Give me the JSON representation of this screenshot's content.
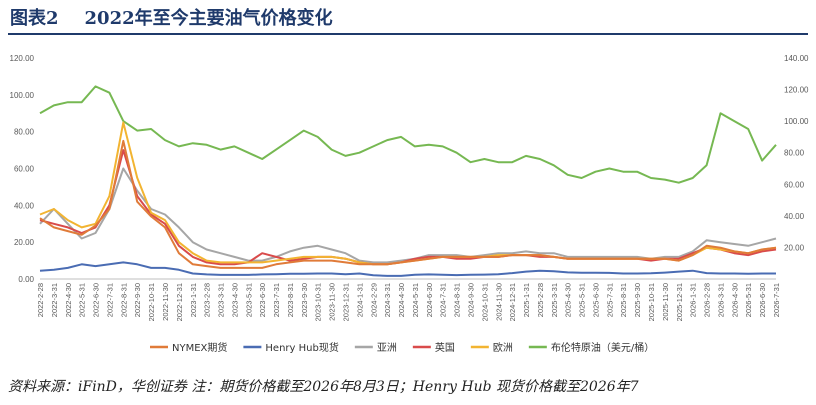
{
  "header": {
    "figure_label": "图表2",
    "title": "2022年至今主要油气价格变化"
  },
  "source_text": "资料来源：iFinD，华创证券 注：期货价格截至2026年8月3日；Henry Hub 现货价格截至2026年7",
  "chart_data": {
    "type": "line",
    "x_ticks": [
      "2022-2-28",
      "2022-3-31",
      "2022-4-30",
      "2022-5-31",
      "2022-6-30",
      "2022-7-31",
      "2022-8-31",
      "2022-9-30",
      "2022-10-31",
      "2022-11-30",
      "2022-12-31",
      "2023-1-31",
      "2023-2-28",
      "2023-3-31",
      "2023-4-30",
      "2023-5-31",
      "2023-6-30",
      "2023-7-31",
      "2023-8-31",
      "2023-9-30",
      "2023-10-31",
      "2023-11-30",
      "2023-12-31",
      "2024-1-31",
      "2024-2-29",
      "2024-3-31",
      "2024-4-30",
      "2024-5-31",
      "2024-6-30",
      "2024-7-31",
      "2024-8-31",
      "2024-9-30",
      "2024-10-31",
      "2024-11-30",
      "2024-12-31",
      "2025-1-31",
      "2025-2-28",
      "2025-3-31",
      "2025-4-30",
      "2025-5-31",
      "2025-6-30",
      "2025-7-31",
      "2025-8-31",
      "2025-9-30",
      "2025-10-31",
      "2025-11-30",
      "2025-12-31",
      "2026-1-31",
      "2026-2-28",
      "2026-3-31",
      "2026-4-30",
      "2026-5-31",
      "2026-6-30",
      "2026-7-31"
    ],
    "y_left": {
      "range": [
        0,
        120
      ],
      "ticks": [
        "0.00",
        "20.00",
        "40.00",
        "60.00",
        "80.00",
        "100.00",
        "120.00"
      ]
    },
    "y_right": {
      "range": [
        0,
        140
      ],
      "ticks": [
        "20.00",
        "40.00",
        "60.00",
        "80.00",
        "100.00",
        "120.00",
        "140.00"
      ]
    },
    "grid": false,
    "legend_position": "bottom",
    "series": [
      {
        "name": "NYMEX期货",
        "color": "#e07b39",
        "axis": "left",
        "values": [
          33,
          28,
          26,
          24,
          29,
          38,
          75,
          42,
          34,
          28,
          14,
          8,
          7,
          6,
          6,
          6,
          6,
          8,
          9,
          10,
          10,
          10,
          9,
          8,
          8,
          8,
          9,
          10,
          11,
          12,
          12,
          12,
          12,
          12,
          13,
          13,
          13,
          12,
          11,
          11,
          11,
          11,
          11,
          11,
          11,
          11,
          10,
          13,
          18,
          17,
          15,
          14,
          16,
          17
        ]
      },
      {
        "name": "Henry Hub现货",
        "color": "#4a6cb3",
        "axis": "left",
        "values": [
          4.5,
          5,
          6,
          8,
          7,
          8,
          9,
          8,
          6,
          6,
          5,
          3,
          2.5,
          2.2,
          2.2,
          2.2,
          2.5,
          2.6,
          2.8,
          2.9,
          3,
          3,
          2.6,
          3,
          2,
          1.7,
          1.7,
          2.3,
          2.5,
          2.3,
          2.1,
          2.3,
          2.4,
          2.6,
          3.2,
          4,
          4.5,
          4.2,
          3.6,
          3.4,
          3.4,
          3.3,
          3,
          3,
          3.1,
          3.5,
          4,
          4.5,
          3.2,
          3,
          3,
          2.9,
          3,
          3
        ]
      },
      {
        "name": "亚洲",
        "color": "#a6a6a6",
        "axis": "left",
        "values": [
          30,
          38,
          30,
          22,
          25,
          38,
          60,
          48,
          38,
          35,
          28,
          20,
          16,
          14,
          12,
          10,
          10,
          12,
          15,
          17,
          18,
          16,
          14,
          10,
          9,
          9,
          10,
          11,
          13,
          13,
          13,
          12,
          13,
          14,
          14,
          15,
          14,
          14,
          12,
          12,
          12,
          12,
          12,
          12,
          11,
          12,
          12,
          15,
          21,
          20,
          19,
          18,
          20,
          22
        ]
      },
      {
        "name": "英国",
        "color": "#d94b4b",
        "axis": "left",
        "values": [
          32,
          30,
          28,
          25,
          28,
          40,
          70,
          45,
          35,
          30,
          18,
          12,
          9,
          8,
          8,
          9,
          14,
          12,
          10,
          11,
          12,
          12,
          11,
          9,
          8,
          8,
          9,
          11,
          12,
          12,
          11,
          11,
          12,
          12,
          13,
          13,
          12,
          12,
          11,
          11,
          11,
          11,
          11,
          11,
          10,
          11,
          11,
          14,
          17,
          16,
          14,
          13,
          15,
          16
        ]
      },
      {
        "name": "欧洲",
        "color": "#f2b431",
        "axis": "left",
        "values": [
          35,
          38,
          32,
          28,
          30,
          45,
          85,
          55,
          36,
          32,
          20,
          14,
          10,
          9,
          9,
          9,
          9,
          10,
          11,
          12,
          12,
          12,
          11,
          9,
          8,
          8,
          9,
          10,
          11,
          12,
          12,
          12,
          12,
          13,
          13,
          13,
          13,
          12,
          11,
          11,
          11,
          11,
          11,
          11,
          11,
          11,
          10,
          13,
          17,
          16,
          15,
          14,
          16,
          17
        ]
      },
      {
        "name": "布伦特原油（美元/桶）",
        "color": "#76b852",
        "axis": "right",
        "values": [
          105,
          110,
          112,
          112,
          122,
          118,
          100,
          94,
          95,
          88,
          84,
          86,
          85,
          82,
          84,
          80,
          76,
          82,
          88,
          94,
          90,
          82,
          78,
          80,
          84,
          88,
          90,
          84,
          85,
          84,
          80,
          74,
          76,
          74,
          74,
          78,
          76,
          72,
          66,
          64,
          68,
          70,
          68,
          68,
          64,
          63,
          61,
          64,
          72,
          105,
          100,
          95,
          75,
          85
        ]
      }
    ]
  }
}
